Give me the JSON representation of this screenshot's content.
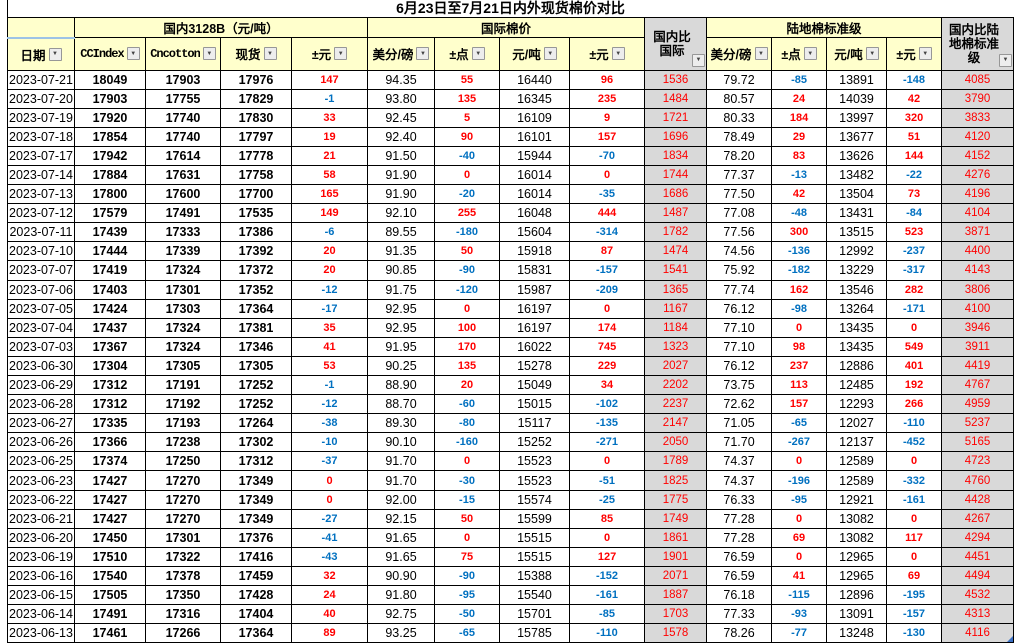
{
  "title": "6月23日至7月21日内外现货棉价对比",
  "header": {
    "date": "日期",
    "groups": {
      "domestic": "国内3128B（元/吨）",
      "international": "国际棉价",
      "upland": "陆地棉标准级"
    },
    "domestic_cols": [
      "CCIndex",
      "Cncotton",
      "现货",
      "±元"
    ],
    "international_cols": [
      "美分/磅",
      "±点",
      "元/吨",
      "±元"
    ],
    "upland_cols": [
      "美分/磅",
      "±点",
      "元/吨",
      "±元"
    ],
    "vs_international": "国内比国际",
    "vs_upland": "国内比陆地棉标准级"
  },
  "colors": {
    "header_bg": "#FFFFCC",
    "compare_col_bg": "#D9D9D9",
    "positive": "#FF0000",
    "negative": "#0070C0",
    "grid": "#000000",
    "pane_line": "#9DC3E6"
  },
  "columns": [
    {
      "key": "date",
      "cls": "date"
    },
    {
      "key": "ccindex",
      "cls": "dom"
    },
    {
      "key": "cncotton",
      "cls": "dom"
    },
    {
      "key": "spot",
      "cls": "dom"
    },
    {
      "key": "spot_chg",
      "cls": "delta",
      "delta": true
    },
    {
      "key": "intl_cents",
      "cls": "val"
    },
    {
      "key": "intl_pts",
      "cls": "delta",
      "delta": true
    },
    {
      "key": "intl_yuan",
      "cls": "val"
    },
    {
      "key": "intl_chg",
      "cls": "delta",
      "delta": true
    },
    {
      "key": "vs_intl",
      "cls": "grayval"
    },
    {
      "key": "up_cents",
      "cls": "val"
    },
    {
      "key": "up_pts",
      "cls": "delta",
      "delta": true
    },
    {
      "key": "up_yuan",
      "cls": "val"
    },
    {
      "key": "up_chg",
      "cls": "delta",
      "delta": true
    },
    {
      "key": "vs_up",
      "cls": "grayval"
    }
  ],
  "rows": [
    {
      "date": "2023-07-21",
      "ccindex": "18049",
      "cncotton": "17903",
      "spot": "17976",
      "spot_chg": "147",
      "intl_cents": "94.35",
      "intl_pts": "55",
      "intl_yuan": "16440",
      "intl_chg": "96",
      "vs_intl": "1536",
      "up_cents": "79.72",
      "up_pts": "-85",
      "up_yuan": "13891",
      "up_chg": "-148",
      "vs_up": "4085"
    },
    {
      "date": "2023-07-20",
      "ccindex": "17903",
      "cncotton": "17755",
      "spot": "17829",
      "spot_chg": "-1",
      "intl_cents": "93.80",
      "intl_pts": "135",
      "intl_yuan": "16345",
      "intl_chg": "235",
      "vs_intl": "1484",
      "up_cents": "80.57",
      "up_pts": "24",
      "up_yuan": "14039",
      "up_chg": "42",
      "vs_up": "3790"
    },
    {
      "date": "2023-07-19",
      "ccindex": "17920",
      "cncotton": "17740",
      "spot": "17830",
      "spot_chg": "33",
      "intl_cents": "92.45",
      "intl_pts": "5",
      "intl_yuan": "16109",
      "intl_chg": "9",
      "vs_intl": "1721",
      "up_cents": "80.33",
      "up_pts": "184",
      "up_yuan": "13997",
      "up_chg": "320",
      "vs_up": "3833"
    },
    {
      "date": "2023-07-18",
      "ccindex": "17854",
      "cncotton": "17740",
      "spot": "17797",
      "spot_chg": "19",
      "intl_cents": "92.40",
      "intl_pts": "90",
      "intl_yuan": "16101",
      "intl_chg": "157",
      "vs_intl": "1696",
      "up_cents": "78.49",
      "up_pts": "29",
      "up_yuan": "13677",
      "up_chg": "51",
      "vs_up": "4120"
    },
    {
      "date": "2023-07-17",
      "ccindex": "17942",
      "cncotton": "17614",
      "spot": "17778",
      "spot_chg": "21",
      "intl_cents": "91.50",
      "intl_pts": "-40",
      "intl_yuan": "15944",
      "intl_chg": "-70",
      "vs_intl": "1834",
      "up_cents": "78.20",
      "up_pts": "83",
      "up_yuan": "13626",
      "up_chg": "144",
      "vs_up": "4152"
    },
    {
      "date": "2023-07-14",
      "ccindex": "17884",
      "cncotton": "17631",
      "spot": "17758",
      "spot_chg": "58",
      "intl_cents": "91.90",
      "intl_pts": "0",
      "intl_yuan": "16014",
      "intl_chg": "0",
      "vs_intl": "1744",
      "up_cents": "77.37",
      "up_pts": "-13",
      "up_yuan": "13482",
      "up_chg": "-22",
      "vs_up": "4276"
    },
    {
      "date": "2023-07-13",
      "ccindex": "17800",
      "cncotton": "17600",
      "spot": "17700",
      "spot_chg": "165",
      "intl_cents": "91.90",
      "intl_pts": "-20",
      "intl_yuan": "16014",
      "intl_chg": "-35",
      "vs_intl": "1686",
      "up_cents": "77.50",
      "up_pts": "42",
      "up_yuan": "13504",
      "up_chg": "73",
      "vs_up": "4196"
    },
    {
      "date": "2023-07-12",
      "ccindex": "17579",
      "cncotton": "17491",
      "spot": "17535",
      "spot_chg": "149",
      "intl_cents": "92.10",
      "intl_pts": "255",
      "intl_yuan": "16048",
      "intl_chg": "444",
      "vs_intl": "1487",
      "up_cents": "77.08",
      "up_pts": "-48",
      "up_yuan": "13431",
      "up_chg": "-84",
      "vs_up": "4104"
    },
    {
      "date": "2023-07-11",
      "ccindex": "17439",
      "cncotton": "17333",
      "spot": "17386",
      "spot_chg": "-6",
      "intl_cents": "89.55",
      "intl_pts": "-180",
      "intl_yuan": "15604",
      "intl_chg": "-314",
      "vs_intl": "1782",
      "up_cents": "77.56",
      "up_pts": "300",
      "up_yuan": "13515",
      "up_chg": "523",
      "vs_up": "3871"
    },
    {
      "date": "2023-07-10",
      "ccindex": "17444",
      "cncotton": "17339",
      "spot": "17392",
      "spot_chg": "20",
      "intl_cents": "91.35",
      "intl_pts": "50",
      "intl_yuan": "15918",
      "intl_chg": "87",
      "vs_intl": "1474",
      "up_cents": "74.56",
      "up_pts": "-136",
      "up_yuan": "12992",
      "up_chg": "-237",
      "vs_up": "4400"
    },
    {
      "date": "2023-07-07",
      "ccindex": "17419",
      "cncotton": "17324",
      "spot": "17372",
      "spot_chg": "20",
      "intl_cents": "90.85",
      "intl_pts": "-90",
      "intl_yuan": "15831",
      "intl_chg": "-157",
      "vs_intl": "1541",
      "up_cents": "75.92",
      "up_pts": "-182",
      "up_yuan": "13229",
      "up_chg": "-317",
      "vs_up": "4143"
    },
    {
      "date": "2023-07-06",
      "ccindex": "17403",
      "cncotton": "17301",
      "spot": "17352",
      "spot_chg": "-12",
      "intl_cents": "91.75",
      "intl_pts": "-120",
      "intl_yuan": "15987",
      "intl_chg": "-209",
      "vs_intl": "1365",
      "up_cents": "77.74",
      "up_pts": "162",
      "up_yuan": "13546",
      "up_chg": "282",
      "vs_up": "3806"
    },
    {
      "date": "2023-07-05",
      "ccindex": "17424",
      "cncotton": "17303",
      "spot": "17364",
      "spot_chg": "-17",
      "intl_cents": "92.95",
      "intl_pts": "0",
      "intl_yuan": "16197",
      "intl_chg": "0",
      "vs_intl": "1167",
      "up_cents": "76.12",
      "up_pts": "-98",
      "up_yuan": "13264",
      "up_chg": "-171",
      "vs_up": "4100"
    },
    {
      "date": "2023-07-04",
      "ccindex": "17437",
      "cncotton": "17324",
      "spot": "17381",
      "spot_chg": "35",
      "intl_cents": "92.95",
      "intl_pts": "100",
      "intl_yuan": "16197",
      "intl_chg": "174",
      "vs_intl": "1184",
      "up_cents": "77.10",
      "up_pts": "0",
      "up_yuan": "13435",
      "up_chg": "0",
      "vs_up": "3946"
    },
    {
      "date": "2023-07-03",
      "ccindex": "17367",
      "cncotton": "17324",
      "spot": "17346",
      "spot_chg": "41",
      "intl_cents": "91.95",
      "intl_pts": "170",
      "intl_yuan": "16022",
      "intl_chg": "745",
      "vs_intl": "1323",
      "up_cents": "77.10",
      "up_pts": "98",
      "up_yuan": "13435",
      "up_chg": "549",
      "vs_up": "3911"
    },
    {
      "date": "2023-06-30",
      "ccindex": "17304",
      "cncotton": "17305",
      "spot": "17305",
      "spot_chg": "53",
      "intl_cents": "90.25",
      "intl_pts": "135",
      "intl_yuan": "15278",
      "intl_chg": "229",
      "vs_intl": "2027",
      "up_cents": "76.12",
      "up_pts": "237",
      "up_yuan": "12886",
      "up_chg": "401",
      "vs_up": "4419"
    },
    {
      "date": "2023-06-29",
      "ccindex": "17312",
      "cncotton": "17191",
      "spot": "17252",
      "spot_chg": "-1",
      "intl_cents": "88.90",
      "intl_pts": "20",
      "intl_yuan": "15049",
      "intl_chg": "34",
      "vs_intl": "2202",
      "up_cents": "73.75",
      "up_pts": "113",
      "up_yuan": "12485",
      "up_chg": "192",
      "vs_up": "4767"
    },
    {
      "date": "2023-06-28",
      "ccindex": "17312",
      "cncotton": "17192",
      "spot": "17252",
      "spot_chg": "-12",
      "intl_cents": "88.70",
      "intl_pts": "-60",
      "intl_yuan": "15015",
      "intl_chg": "-102",
      "vs_intl": "2237",
      "up_cents": "72.62",
      "up_pts": "157",
      "up_yuan": "12293",
      "up_chg": "266",
      "vs_up": "4959"
    },
    {
      "date": "2023-06-27",
      "ccindex": "17335",
      "cncotton": "17193",
      "spot": "17264",
      "spot_chg": "-38",
      "intl_cents": "89.30",
      "intl_pts": "-80",
      "intl_yuan": "15117",
      "intl_chg": "-135",
      "vs_intl": "2147",
      "up_cents": "71.05",
      "up_pts": "-65",
      "up_yuan": "12027",
      "up_chg": "-110",
      "vs_up": "5237"
    },
    {
      "date": "2023-06-26",
      "ccindex": "17366",
      "cncotton": "17238",
      "spot": "17302",
      "spot_chg": "-10",
      "intl_cents": "90.10",
      "intl_pts": "-160",
      "intl_yuan": "15252",
      "intl_chg": "-271",
      "vs_intl": "2050",
      "up_cents": "71.70",
      "up_pts": "-267",
      "up_yuan": "12137",
      "up_chg": "-452",
      "vs_up": "5165"
    },
    {
      "date": "2023-06-25",
      "ccindex": "17374",
      "cncotton": "17250",
      "spot": "17312",
      "spot_chg": "-37",
      "intl_cents": "91.70",
      "intl_pts": "0",
      "intl_yuan": "15523",
      "intl_chg": "0",
      "vs_intl": "1789",
      "up_cents": "74.37",
      "up_pts": "0",
      "up_yuan": "12589",
      "up_chg": "0",
      "vs_up": "4723"
    },
    {
      "date": "2023-06-23",
      "ccindex": "17427",
      "cncotton": "17270",
      "spot": "17349",
      "spot_chg": "0",
      "intl_cents": "91.70",
      "intl_pts": "-30",
      "intl_yuan": "15523",
      "intl_chg": "-51",
      "vs_intl": "1825",
      "up_cents": "74.37",
      "up_pts": "-196",
      "up_yuan": "12589",
      "up_chg": "-332",
      "vs_up": "4760"
    },
    {
      "date": "2023-06-22",
      "ccindex": "17427",
      "cncotton": "17270",
      "spot": "17349",
      "spot_chg": "0",
      "intl_cents": "92.00",
      "intl_pts": "-15",
      "intl_yuan": "15574",
      "intl_chg": "-25",
      "vs_intl": "1775",
      "up_cents": "76.33",
      "up_pts": "-95",
      "up_yuan": "12921",
      "up_chg": "-161",
      "vs_up": "4428"
    },
    {
      "date": "2023-06-21",
      "ccindex": "17427",
      "cncotton": "17270",
      "spot": "17349",
      "spot_chg": "-27",
      "intl_cents": "92.15",
      "intl_pts": "50",
      "intl_yuan": "15599",
      "intl_chg": "85",
      "vs_intl": "1749",
      "up_cents": "77.28",
      "up_pts": "0",
      "up_yuan": "13082",
      "up_chg": "0",
      "vs_up": "4267"
    },
    {
      "date": "2023-06-20",
      "ccindex": "17450",
      "cncotton": "17301",
      "spot": "17376",
      "spot_chg": "-41",
      "intl_cents": "91.65",
      "intl_pts": "0",
      "intl_yuan": "15515",
      "intl_chg": "0",
      "vs_intl": "1861",
      "up_cents": "77.28",
      "up_pts": "69",
      "up_yuan": "13082",
      "up_chg": "117",
      "vs_up": "4294"
    },
    {
      "date": "2023-06-19",
      "ccindex": "17510",
      "cncotton": "17322",
      "spot": "17416",
      "spot_chg": "-43",
      "intl_cents": "91.65",
      "intl_pts": "75",
      "intl_yuan": "15515",
      "intl_chg": "127",
      "vs_intl": "1901",
      "up_cents": "76.59",
      "up_pts": "0",
      "up_yuan": "12965",
      "up_chg": "0",
      "vs_up": "4451"
    },
    {
      "date": "2023-06-16",
      "ccindex": "17540",
      "cncotton": "17378",
      "spot": "17459",
      "spot_chg": "32",
      "intl_cents": "90.90",
      "intl_pts": "-90",
      "intl_yuan": "15388",
      "intl_chg": "-152",
      "vs_intl": "2071",
      "up_cents": "76.59",
      "up_pts": "41",
      "up_yuan": "12965",
      "up_chg": "69",
      "vs_up": "4494"
    },
    {
      "date": "2023-06-15",
      "ccindex": "17505",
      "cncotton": "17350",
      "spot": "17428",
      "spot_chg": "24",
      "intl_cents": "91.80",
      "intl_pts": "-95",
      "intl_yuan": "15540",
      "intl_chg": "-161",
      "vs_intl": "1887",
      "up_cents": "76.18",
      "up_pts": "-115",
      "up_yuan": "12896",
      "up_chg": "-195",
      "vs_up": "4532"
    },
    {
      "date": "2023-06-14",
      "ccindex": "17491",
      "cncotton": "17316",
      "spot": "17404",
      "spot_chg": "40",
      "intl_cents": "92.75",
      "intl_pts": "-50",
      "intl_yuan": "15701",
      "intl_chg": "-85",
      "vs_intl": "1703",
      "up_cents": "77.33",
      "up_pts": "-93",
      "up_yuan": "13091",
      "up_chg": "-157",
      "vs_up": "4313"
    },
    {
      "date": "2023-06-13",
      "ccindex": "17461",
      "cncotton": "17266",
      "spot": "17364",
      "spot_chg": "89",
      "intl_cents": "93.25",
      "intl_pts": "-65",
      "intl_yuan": "15785",
      "intl_chg": "-110",
      "vs_intl": "1578",
      "up_cents": "78.26",
      "up_pts": "-77",
      "up_yuan": "13248",
      "up_chg": "-130",
      "vs_up": "4116"
    }
  ],
  "filter_dropdown_glyph": "▼"
}
